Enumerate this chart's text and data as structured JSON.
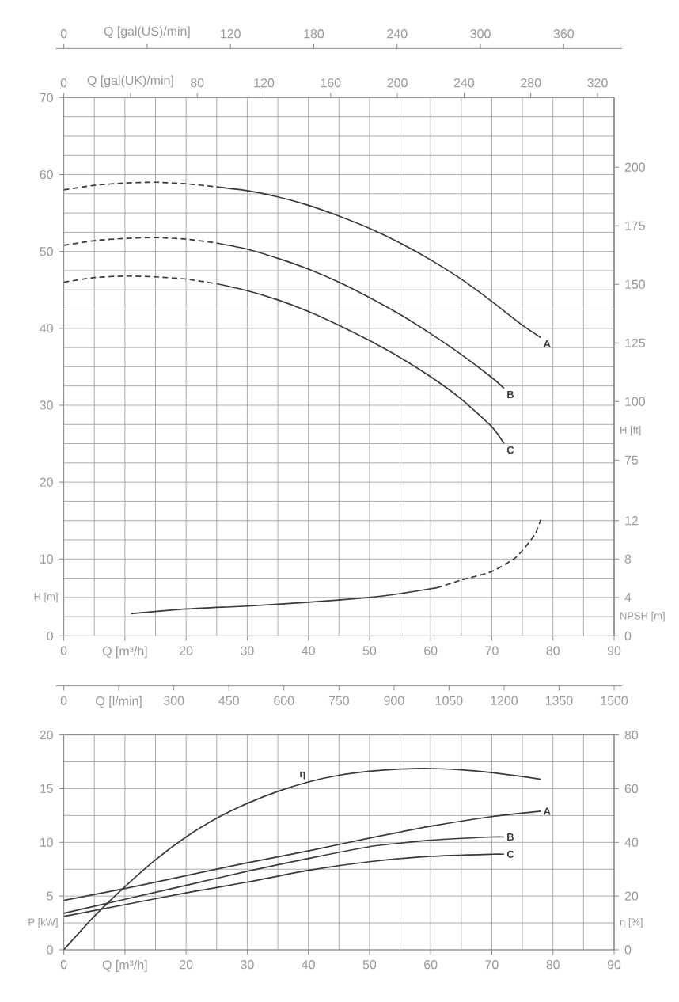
{
  "chart_data": [
    {
      "type": "line",
      "xlim": [
        0,
        90
      ],
      "xticks": [
        0,
        {
          "value": 10,
          "label": "Q [m³/h]"
        },
        20,
        30,
        40,
        50,
        60,
        70,
        80,
        90
      ],
      "x2lim": [
        0,
        396.26
      ],
      "x2ticks": [
        0,
        {
          "value": 60,
          "label": "Q [gal(US)/min]"
        },
        120,
        180,
        240,
        300,
        360
      ],
      "ylim": [
        0,
        70
      ],
      "yticks": [
        0,
        10,
        20,
        30,
        40,
        50,
        60,
        70
      ],
      "ylabel": "H [m]",
      "y2lim": [
        0,
        229.66
      ],
      "y2ticks": [
        75,
        100,
        125,
        150,
        175,
        200
      ],
      "y2label": "H [ft]",
      "grid": true,
      "series": [
        {
          "color": "#3a3a3a",
          "line_style": "dashed",
          "x": [
            0,
            5,
            10,
            15,
            20,
            25
          ],
          "values": [
            58.0,
            58.6,
            58.9,
            59.0,
            58.8,
            58.4
          ]
        },
        {
          "name": "A",
          "color": "#3a3a3a",
          "line_style": "solid",
          "x": [
            25,
            30,
            35,
            40,
            45,
            50,
            55,
            60,
            65,
            70,
            75,
            78
          ],
          "values": [
            58.4,
            57.9,
            57.1,
            56.0,
            54.6,
            53.0,
            51.1,
            48.9,
            46.4,
            43.5,
            40.4,
            38.8
          ]
        },
        {
          "color": "#3a3a3a",
          "line_style": "dashed",
          "x": [
            0,
            5,
            10,
            15,
            20,
            25
          ],
          "values": [
            50.8,
            51.4,
            51.7,
            51.8,
            51.6,
            51.1
          ]
        },
        {
          "name": "B",
          "color": "#3a3a3a",
          "line_style": "solid",
          "x": [
            25,
            30,
            35,
            40,
            45,
            50,
            55,
            60,
            65,
            70,
            72
          ],
          "values": [
            51.1,
            50.3,
            49.1,
            47.7,
            46.0,
            44.0,
            41.8,
            39.3,
            36.6,
            33.6,
            32.2
          ]
        },
        {
          "color": "#3a3a3a",
          "line_style": "dashed",
          "x": [
            0,
            5,
            10,
            15,
            20,
            25
          ],
          "values": [
            46.0,
            46.6,
            46.8,
            46.7,
            46.4,
            45.8
          ]
        },
        {
          "name": "C",
          "color": "#3a3a3a",
          "line_style": "solid",
          "x": [
            25,
            30,
            35,
            40,
            45,
            50,
            55,
            60,
            65,
            70,
            72
          ],
          "values": [
            45.8,
            44.9,
            43.7,
            42.2,
            40.4,
            38.4,
            36.2,
            33.7,
            30.8,
            27.2,
            25.0
          ]
        }
      ]
    },
    {
      "type": "line",
      "xlim": [
        0,
        90
      ],
      "tick_labels": "y",
      "x2lim": [
        0,
        329.96
      ],
      "x2ticks": [
        0,
        {
          "value": 40,
          "label": "Q [gal(UK)/min]"
        },
        80,
        120,
        160,
        200,
        240,
        280,
        320
      ],
      "ylim": [
        0,
        56
      ],
      "yticks": [
        0,
        4,
        8,
        12
      ],
      "ylabel": "NPSH [m]",
      "series": [
        {
          "color": "#3a3a3a",
          "line_style": "solid",
          "x": [
            11,
            20,
            30,
            40,
            50,
            55,
            61
          ],
          "values": [
            2.3,
            2.8,
            3.1,
            3.5,
            4.0,
            4.4,
            5.0
          ]
        },
        {
          "color": "#3a3a3a",
          "line_style": "dashed",
          "x": [
            61,
            65,
            70,
            74,
            77,
            78
          ],
          "values": [
            5.0,
            5.8,
            6.7,
            8.2,
            10.5,
            12.1
          ]
        }
      ]
    },
    {
      "type": "line",
      "xlim": [
        0,
        90
      ],
      "xticks": [
        0,
        {
          "value": 10,
          "label": "Q [m³/h]"
        },
        20,
        30,
        40,
        50,
        60,
        70,
        80,
        90
      ],
      "x2lim": [
        0,
        1500
      ],
      "x2ticks": [
        0,
        {
          "value": 150,
          "label": "Q [l/min]"
        },
        300,
        450,
        600,
        750,
        900,
        1050,
        1200,
        1350,
        1500
      ],
      "ylim": [
        0,
        20
      ],
      "yticks": [
        0,
        5,
        10,
        15,
        20
      ],
      "ylabel": "P [kW]",
      "y2lim": [
        0,
        80
      ],
      "y2ticks": [
        0,
        20,
        40,
        60,
        80
      ],
      "y2label": "η [%]",
      "grid": true,
      "series": [
        {
          "name": "A",
          "color": "#3a3a3a",
          "line_style": "solid",
          "x": [
            0,
            10,
            20,
            30,
            40,
            50,
            60,
            70,
            78
          ],
          "values": [
            4.6,
            5.7,
            6.9,
            8.1,
            9.2,
            10.4,
            11.5,
            12.4,
            12.9
          ]
        },
        {
          "name": "B",
          "color": "#3a3a3a",
          "line_style": "solid",
          "x": [
            0,
            10,
            20,
            30,
            40,
            50,
            60,
            70,
            72
          ],
          "values": [
            3.4,
            4.7,
            6.0,
            7.3,
            8.5,
            9.6,
            10.2,
            10.5,
            10.5
          ]
        },
        {
          "name": "C",
          "color": "#3a3a3a",
          "line_style": "solid",
          "x": [
            0,
            10,
            20,
            30,
            40,
            50,
            60,
            70,
            72
          ],
          "values": [
            3.1,
            4.2,
            5.3,
            6.3,
            7.4,
            8.2,
            8.7,
            8.9,
            8.9
          ]
        },
        {
          "name": "η",
          "axis": "y2",
          "color": "#3a3a3a",
          "line_style": "solid",
          "x": [
            0,
            5,
            10,
            15,
            20,
            25,
            30,
            35,
            40,
            45,
            50,
            55,
            60,
            65,
            70,
            75,
            78
          ],
          "values": [
            0,
            12.5,
            23.5,
            33.5,
            42,
            49,
            54.5,
            59,
            62.5,
            65,
            66.5,
            67.3,
            67.5,
            67,
            66,
            64.5,
            63.5
          ]
        }
      ]
    }
  ]
}
